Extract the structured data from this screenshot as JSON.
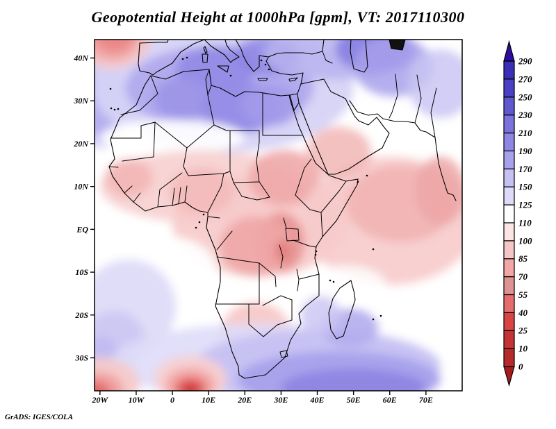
{
  "title": "Geopotential Height at 1000hPa [gpm], VT: 2017110300",
  "footer": "GrADS: IGES/COLA",
  "chart_data": {
    "type": "heatmap",
    "variable": "Geopotential Height",
    "level": "1000hPa",
    "units": "gpm",
    "valid_time": "2017110300",
    "region": "Africa, Mediterranean and adjacent oceans",
    "grid": false,
    "legend_position": "right-colorbar",
    "lon_range": [
      -21.5,
      80
    ],
    "lat_range": [
      -37.7,
      44.3
    ],
    "x_ticks": [
      {
        "label": "20W",
        "lon": -20
      },
      {
        "label": "10W",
        "lon": -10
      },
      {
        "label": "0",
        "lon": 0
      },
      {
        "label": "10E",
        "lon": 10
      },
      {
        "label": "20E",
        "lon": 20
      },
      {
        "label": "30E",
        "lon": 30
      },
      {
        "label": "40E",
        "lon": 40
      },
      {
        "label": "50E",
        "lon": 50
      },
      {
        "label": "60E",
        "lon": 60
      },
      {
        "label": "70E",
        "lon": 70
      }
    ],
    "y_ticks": [
      {
        "label": "40N",
        "lat": 40
      },
      {
        "label": "30N",
        "lat": 30
      },
      {
        "label": "20N",
        "lat": 20
      },
      {
        "label": "10N",
        "lat": 10
      },
      {
        "label": "EQ",
        "lat": 0
      },
      {
        "label": "10S",
        "lat": -10
      },
      {
        "label": "20S",
        "lat": -20
      },
      {
        "label": "30S",
        "lat": -30
      }
    ],
    "colorbar": {
      "levels": [
        0,
        10,
        25,
        40,
        55,
        70,
        85,
        100,
        110,
        125,
        150,
        170,
        190,
        210,
        230,
        250,
        270,
        290
      ],
      "colors": [
        "#a61b1b",
        "#b52a2a",
        "#c43434",
        "#d94545",
        "#e66d6d",
        "#df9292",
        "#f2a6a6",
        "#f6c6c6",
        "#fbe4e4",
        "#ffffff",
        "#dedbf8",
        "#c6c1f2",
        "#a8a1eb",
        "#8e86e3",
        "#7b72de",
        "#6058d0",
        "#4a40c4",
        "#3b2fb8",
        "#2d0d9e"
      ]
    },
    "features": [
      {
        "type": "low",
        "lon": -16,
        "lat": 44.5,
        "approx_value_gpm": 55,
        "desc": "closed low NE Atlantic, top-left red blob"
      },
      {
        "type": "low",
        "lon": 5,
        "lat": -37,
        "approx_value_gpm": 25,
        "desc": "intense low south of Cape Town at bottom edge"
      },
      {
        "type": "low",
        "lon": -21,
        "lat": -37.5,
        "approx_value_gpm": 55,
        "desc": "low at bottom-left corner"
      },
      {
        "type": "low-band",
        "desc": "70-110 gpm band over Sahel, Congo, East Africa and NW Indian Ocean"
      },
      {
        "type": "high",
        "lon": 13,
        "lat": 33,
        "approx_value_gpm": 200,
        "desc": "high over Mediterranean / Libya-Algeria"
      },
      {
        "type": "high",
        "lon": 56,
        "lat": 42,
        "approx_value_gpm": 210,
        "desc": "high near Caspian region, top-right"
      },
      {
        "type": "high",
        "lon": 50,
        "lat": -37,
        "approx_value_gpm": 200,
        "desc": "high across southern Indian Ocean"
      },
      {
        "type": "high",
        "lon": -18,
        "lat": 30,
        "approx_value_gpm": 160,
        "desc": "weak ridge NE Atlantic near coast"
      }
    ],
    "field_blobs": [
      [
        -19,
        34,
        12,
        15,
        "#cfcaf4",
        1
      ],
      [
        -18,
        29,
        7,
        8,
        "#b3acee",
        0.9
      ],
      [
        14,
        33,
        36,
        15,
        "#d6d3f6",
        0.95
      ],
      [
        13,
        33,
        26,
        10,
        "#b1aaee",
        0.95
      ],
      [
        12,
        37.5,
        11,
        5,
        "#918ae4",
        0.9
      ],
      [
        3,
        30.5,
        8,
        5,
        "#9c94e7",
        0.9
      ],
      [
        19,
        28.5,
        11,
        6,
        "#938be5",
        0.9
      ],
      [
        27,
        29,
        8,
        5,
        "#a39bea",
        0.85
      ],
      [
        26,
        40.5,
        9,
        4.5,
        "#8e86e3",
        0.85
      ],
      [
        45,
        41,
        20,
        6,
        "#b9b3ef",
        0.85
      ],
      [
        56,
        42,
        11,
        5.5,
        "#8a82e2",
        0.95
      ],
      [
        61,
        38,
        11,
        7,
        "#a8a1eb",
        0.85
      ],
      [
        74,
        34,
        9,
        8,
        "#cac5f3",
        0.85
      ],
      [
        0,
        21.5,
        20,
        4,
        "#ffffff",
        0.9
      ],
      [
        55,
        22,
        9,
        5,
        "#ffffff",
        0.9
      ],
      [
        -12,
        20,
        6,
        5,
        "#ffffff",
        0.7
      ],
      [
        -17,
        44.5,
        11,
        7,
        "#f6c6c6",
        0.95
      ],
      [
        -16.5,
        44.5,
        7.5,
        5,
        "#f0a2a2",
        0.95
      ],
      [
        -16,
        45,
        5,
        3.5,
        "#ea8686",
        0.95
      ],
      [
        8,
        10,
        28,
        8.5,
        "#f8d2d2",
        0.95
      ],
      [
        24,
        1,
        24,
        12,
        "#f7caca",
        0.9
      ],
      [
        -12,
        12,
        6.5,
        4.5,
        "#f3b6b6",
        0.9
      ],
      [
        8,
        9,
        9,
        5.5,
        "#f4baba",
        0.9
      ],
      [
        31,
        12,
        10,
        6.5,
        "#efa8a8",
        0.9
      ],
      [
        30,
        -3,
        6.5,
        7,
        "#e89292",
        0.9
      ],
      [
        23,
        -4,
        10,
        7,
        "#efa6a6",
        0.9
      ],
      [
        30.5,
        -5,
        2.2,
        2.6,
        "#e07a7a",
        0.85
      ],
      [
        45,
        6,
        8,
        5.5,
        "#f6c6c6",
        0.8
      ],
      [
        60,
        2,
        24,
        15,
        "#f7cbcb",
        0.9
      ],
      [
        63,
        6,
        15,
        9,
        "#f2b4b4",
        0.9
      ],
      [
        74,
        9,
        7,
        8,
        "#eda6a6",
        0.85
      ],
      [
        46,
        18,
        9,
        6,
        "#f2b6b6",
        0.85
      ],
      [
        23,
        -25,
        10,
        8,
        "#f7c8c8",
        0.95
      ],
      [
        26,
        -29,
        6.5,
        5,
        "#f2b0b0",
        0.9
      ],
      [
        -3,
        -9,
        15,
        7.5,
        "#ffffff",
        0.95
      ],
      [
        48,
        -13,
        11,
        4.5,
        "#ffffff",
        0.85
      ],
      [
        66,
        -22,
        13,
        5.5,
        "#ffffff",
        0.9
      ],
      [
        -12,
        -18,
        13,
        11,
        "#dedbf8",
        0.95
      ],
      [
        -16,
        -26,
        8.5,
        7,
        "#ccc7f3",
        0.9
      ],
      [
        -19.5,
        -30,
        5,
        5,
        "#beb8f0",
        0.8
      ],
      [
        25,
        -31,
        42,
        9,
        "#dedbf8",
        0.9
      ],
      [
        40,
        -32,
        34,
        8.5,
        "#c6c1f2",
        0.95
      ],
      [
        46,
        -35,
        28,
        6.5,
        "#a8a1eb",
        0.95
      ],
      [
        50,
        -37,
        20,
        4.5,
        "#8e86e3",
        0.95
      ],
      [
        49,
        -23,
        8,
        4.5,
        "#b3acee",
        0.9
      ],
      [
        41,
        -20,
        5.5,
        4.5,
        "#ccc7f3",
        0.85
      ],
      [
        5,
        -35,
        10,
        5.5,
        "#f8d0d0",
        0.95
      ],
      [
        5,
        -36.3,
        7,
        4,
        "#f2a6a6",
        0.95
      ],
      [
        5,
        -37,
        4.5,
        2.6,
        "#e66d6d",
        0.95
      ],
      [
        5,
        -37.3,
        2.8,
        1.7,
        "#d94545",
        1
      ],
      [
        5,
        -37.5,
        1.5,
        1,
        "#c43232",
        1
      ],
      [
        -20,
        -36,
        11,
        6,
        "#f6caca",
        0.95
      ],
      [
        -21,
        -37.3,
        7.5,
        4,
        "#f0a0a0",
        0.95
      ],
      [
        -21.5,
        -38,
        4.5,
        2.5,
        "#e26666",
        0.9
      ]
    ]
  }
}
